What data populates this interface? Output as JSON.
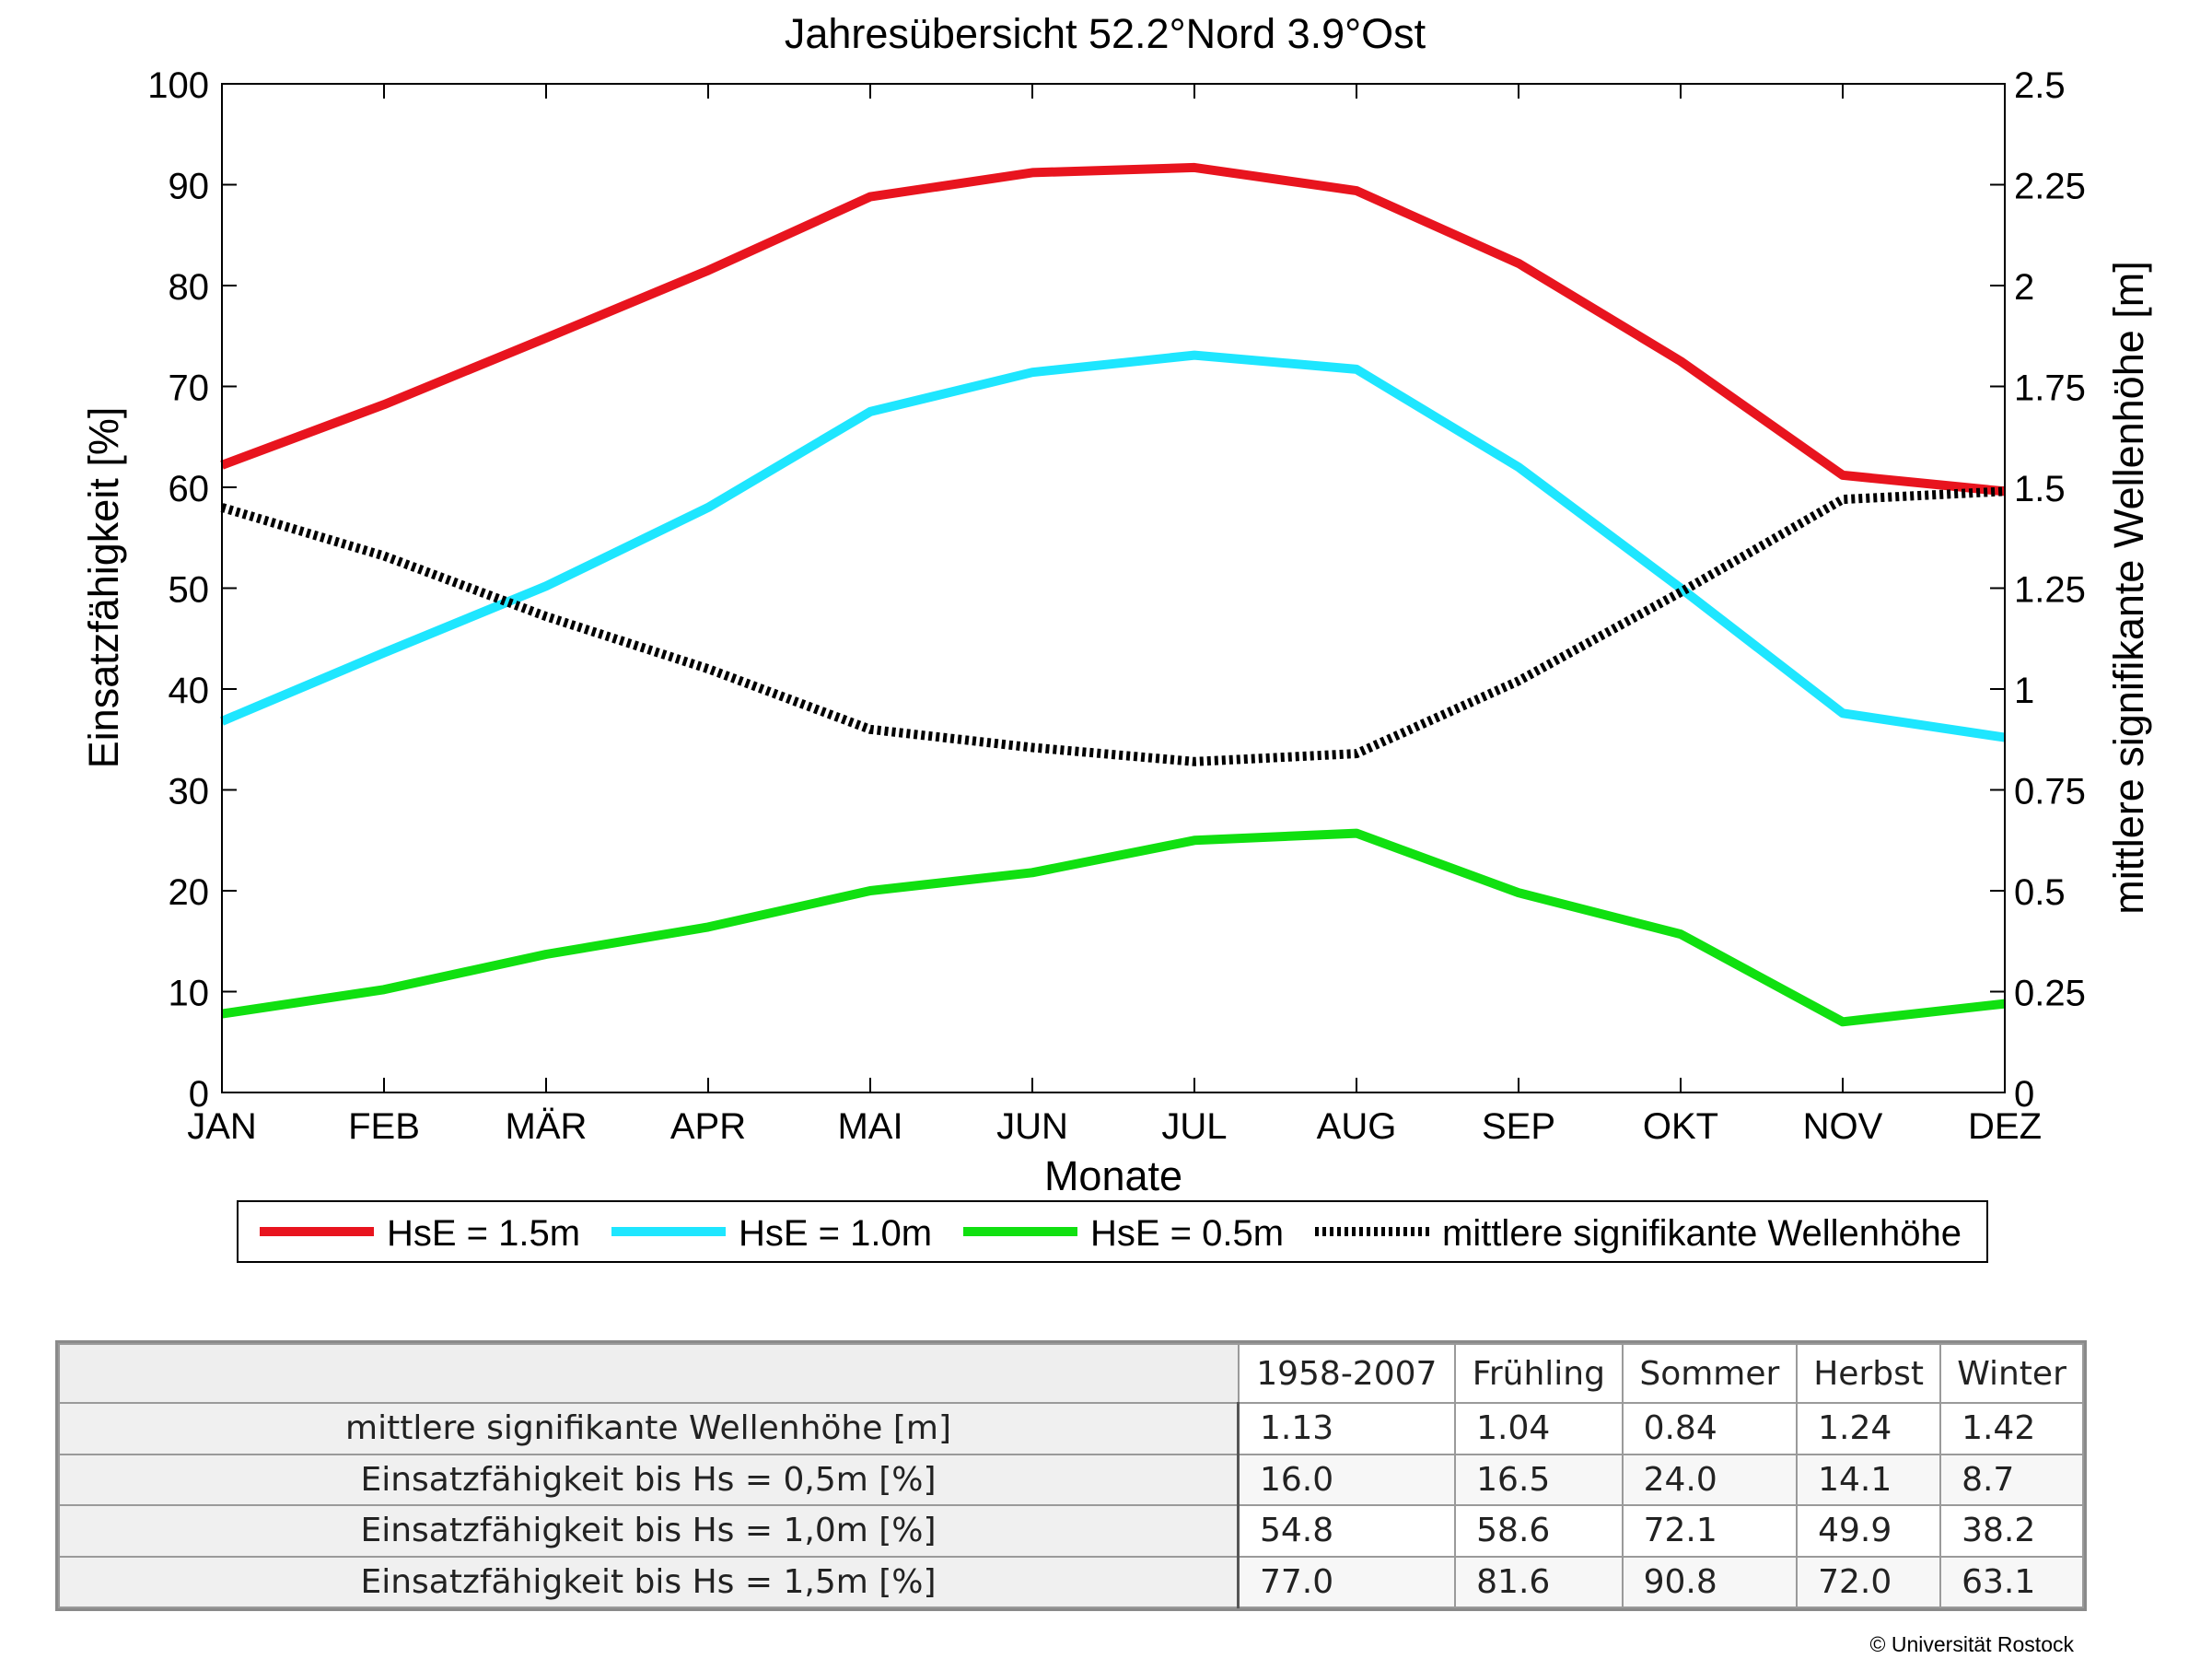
{
  "chart_data": {
    "type": "line",
    "title": "Jahresübersicht  52.2°Nord  3.9°Ost",
    "xlabel": "Monate",
    "ylabel": "Einsatzfähigkeit [%]",
    "y2label": "mittlere signifikante Wellenhöhe [m]",
    "categories": [
      "JAN",
      "FEB",
      "MÄR",
      "APR",
      "MAI",
      "JUN",
      "JUL",
      "AUG",
      "SEP",
      "OKT",
      "NOV",
      "DEZ"
    ],
    "ylim": [
      0,
      100
    ],
    "y2lim": [
      0,
      2.5
    ],
    "yticks": [
      "0",
      "10",
      "20",
      "30",
      "40",
      "50",
      "60",
      "70",
      "80",
      "90",
      "100"
    ],
    "y2ticks": [
      "0",
      "0.25",
      "0.5",
      "0.75",
      "1",
      "1.25",
      "1.5",
      "1.75",
      "2",
      "2.25",
      "2.5"
    ],
    "legend_position": "bottom",
    "series": [
      {
        "name": "HsE = 1.5m",
        "axis": "left",
        "color": "#e8141e",
        "style": "solid",
        "values": [
          62.2,
          68.2,
          74.8,
          81.5,
          88.8,
          91.2,
          91.7,
          89.4,
          82.2,
          72.5,
          61.2,
          59.6
        ]
      },
      {
        "name": "HsE = 1.0m",
        "axis": "left",
        "color": "#1ee6ff",
        "style": "solid",
        "values": [
          36.8,
          43.6,
          50.2,
          58.0,
          67.5,
          71.4,
          73.1,
          71.7,
          62.0,
          50.0,
          37.6,
          35.2
        ]
      },
      {
        "name": "HsE = 0.5m",
        "axis": "left",
        "color": "#10e010",
        "style": "solid",
        "values": [
          7.8,
          10.2,
          13.7,
          16.4,
          20.0,
          21.8,
          25.0,
          25.7,
          19.8,
          15.7,
          7.0,
          8.8
        ]
      },
      {
        "name": "mittlere signifikante Wellenhöhe",
        "axis": "right",
        "color": "#000000",
        "style": "dotted",
        "values": [
          1.45,
          1.33,
          1.18,
          1.05,
          0.9,
          0.855,
          0.82,
          0.84,
          1.02,
          1.24,
          1.47,
          1.49
        ]
      }
    ]
  },
  "table": {
    "headers": [
      "",
      "1958-2007",
      "Frühling",
      "Sommer",
      "Herbst",
      "Winter"
    ],
    "rows": [
      {
        "label": "mittlere signifikante Wellenhöhe [m]",
        "values": [
          "1.13",
          "1.04",
          "0.84",
          "1.24",
          "1.42"
        ]
      },
      {
        "label": "Einsatzfähigkeit bis Hs = 0,5m [%]",
        "values": [
          "16.0",
          "16.5",
          "24.0",
          "14.1",
          "8.7"
        ]
      },
      {
        "label": "Einsatzfähigkeit bis Hs = 1,0m [%]",
        "values": [
          "54.8",
          "58.6",
          "72.1",
          "49.9",
          "38.2"
        ]
      },
      {
        "label": "Einsatzfähigkeit bis Hs = 1,5m [%]",
        "values": [
          "77.0",
          "81.6",
          "90.8",
          "72.0",
          "63.1"
        ]
      }
    ]
  },
  "footer": {
    "copyright": "© Universität Rostock"
  }
}
